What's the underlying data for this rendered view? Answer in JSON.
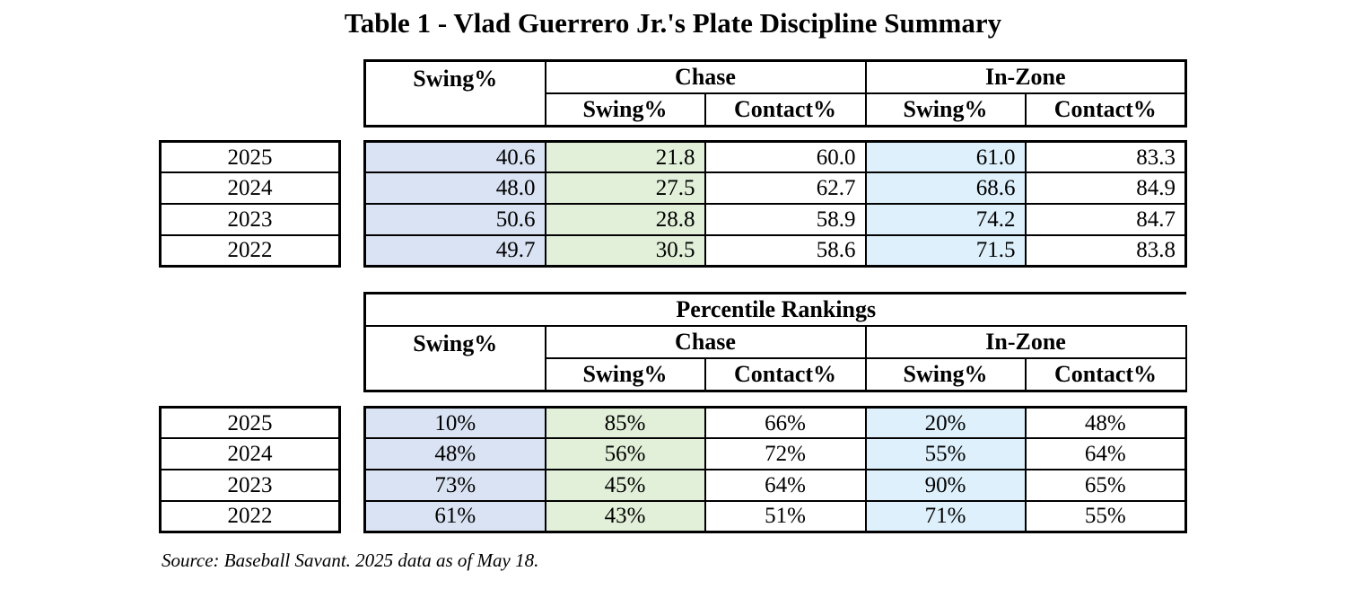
{
  "title": "Table 1 - Vlad Guerrero Jr.'s Plate Discipline Summary",
  "stats_table": {
    "headers": {
      "swing": "Swing%",
      "chase": "Chase",
      "in_zone": "In-Zone",
      "sub": [
        "Swing%",
        "Contact%",
        "Swing%",
        "Contact%"
      ]
    },
    "rows": [
      {
        "year": "2025",
        "values": [
          "40.6",
          "21.8",
          "60.0",
          "61.0",
          "83.3"
        ]
      },
      {
        "year": "2024",
        "values": [
          "48.0",
          "27.5",
          "62.7",
          "68.6",
          "84.9"
        ]
      },
      {
        "year": "2023",
        "values": [
          "50.6",
          "28.8",
          "58.9",
          "74.2",
          "84.7"
        ]
      },
      {
        "year": "2022",
        "values": [
          "49.7",
          "30.5",
          "58.6",
          "71.5",
          "83.8"
        ]
      }
    ]
  },
  "percentile_table": {
    "title": "Percentile Rankings",
    "headers": {
      "swing": "Swing%",
      "chase": "Chase",
      "in_zone": "In-Zone",
      "sub": [
        "Swing%",
        "Contact%",
        "Swing%",
        "Contact%"
      ]
    },
    "rows": [
      {
        "year": "2025",
        "values": [
          "10%",
          "85%",
          "66%",
          "20%",
          "48%"
        ]
      },
      {
        "year": "2024",
        "values": [
          "48%",
          "56%",
          "72%",
          "55%",
          "64%"
        ]
      },
      {
        "year": "2023",
        "values": [
          "73%",
          "45%",
          "64%",
          "90%",
          "65%"
        ]
      },
      {
        "year": "2022",
        "values": [
          "61%",
          "43%",
          "51%",
          "71%",
          "55%"
        ]
      }
    ]
  },
  "source": "Source: Baseball Savant. 2025 data as of May 18."
}
